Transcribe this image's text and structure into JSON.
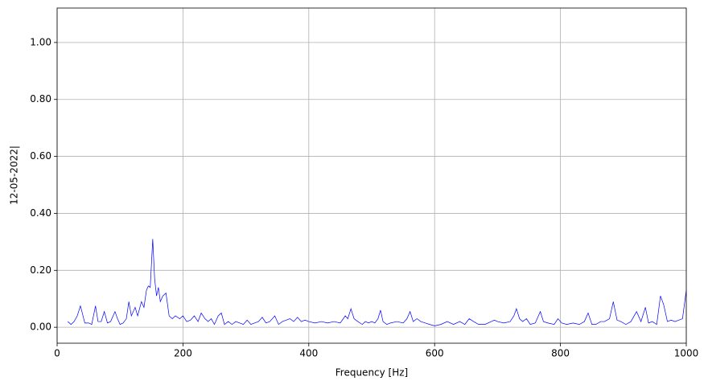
{
  "chart_data": {
    "type": "line",
    "xlabel": "Frequency [Hz]",
    "ylabel": "12-05-2022|",
    "x": [
      17,
      22,
      27,
      32,
      37,
      40,
      44,
      50,
      55,
      61,
      65,
      70,
      75,
      80,
      85,
      92,
      96,
      100,
      105,
      110,
      114,
      118,
      124,
      128,
      134,
      138,
      142,
      145,
      148,
      152,
      155,
      158,
      161,
      164,
      168,
      173,
      178,
      183,
      188,
      195,
      200,
      206,
      212,
      218,
      224,
      229,
      235,
      240,
      245,
      250,
      256,
      261,
      266,
      272,
      278,
      284,
      290,
      296,
      302,
      308,
      314,
      320,
      326,
      332,
      338,
      346,
      352,
      358,
      364,
      370,
      376,
      382,
      388,
      394,
      400,
      410,
      420,
      430,
      440,
      450,
      458,
      462,
      467,
      472,
      478,
      485,
      490,
      495,
      500,
      505,
      510,
      514,
      518,
      524,
      530,
      540,
      550,
      556,
      561,
      566,
      572,
      578,
      585,
      592,
      600,
      610,
      620,
      630,
      640,
      648,
      655,
      662,
      670,
      680,
      690,
      695,
      700,
      710,
      720,
      726,
      730,
      735,
      740,
      746,
      752,
      760,
      768,
      773,
      780,
      790,
      796,
      802,
      810,
      820,
      830,
      838,
      844,
      850,
      856,
      864,
      870,
      878,
      884,
      890,
      896,
      904,
      912,
      921,
      928,
      935,
      940,
      946,
      953,
      959,
      964,
      970,
      976,
      982,
      988,
      994,
      1000
    ],
    "series": [
      {
        "color": "#0000ff",
        "values": [
          0.02,
          0.01,
          0.02,
          0.04,
          0.075,
          0.05,
          0.015,
          0.015,
          0.01,
          0.075,
          0.02,
          0.02,
          0.055,
          0.015,
          0.02,
          0.055,
          0.03,
          0.01,
          0.015,
          0.03,
          0.09,
          0.04,
          0.07,
          0.04,
          0.09,
          0.07,
          0.13,
          0.145,
          0.14,
          0.31,
          0.17,
          0.11,
          0.14,
          0.09,
          0.11,
          0.12,
          0.04,
          0.03,
          0.04,
          0.03,
          0.04,
          0.02,
          0.025,
          0.04,
          0.02,
          0.05,
          0.03,
          0.02,
          0.03,
          0.01,
          0.04,
          0.05,
          0.01,
          0.02,
          0.01,
          0.02,
          0.015,
          0.01,
          0.025,
          0.01,
          0.015,
          0.02,
          0.035,
          0.015,
          0.02,
          0.04,
          0.01,
          0.02,
          0.025,
          0.03,
          0.02,
          0.035,
          0.02,
          0.025,
          0.02,
          0.015,
          0.02,
          0.015,
          0.02,
          0.015,
          0.04,
          0.03,
          0.065,
          0.03,
          0.02,
          0.01,
          0.02,
          0.015,
          0.02,
          0.015,
          0.03,
          0.06,
          0.02,
          0.01,
          0.015,
          0.02,
          0.015,
          0.03,
          0.055,
          0.02,
          0.03,
          0.02,
          0.015,
          0.01,
          0.005,
          0.01,
          0.02,
          0.01,
          0.02,
          0.01,
          0.03,
          0.02,
          0.01,
          0.01,
          0.02,
          0.025,
          0.02,
          0.015,
          0.02,
          0.04,
          0.065,
          0.03,
          0.02,
          0.03,
          0.01,
          0.015,
          0.055,
          0.02,
          0.015,
          0.01,
          0.03,
          0.015,
          0.01,
          0.015,
          0.01,
          0.02,
          0.05,
          0.01,
          0.01,
          0.02,
          0.02,
          0.03,
          0.09,
          0.025,
          0.02,
          0.01,
          0.02,
          0.055,
          0.02,
          0.07,
          0.015,
          0.02,
          0.01,
          0.11,
          0.08,
          0.02,
          0.025,
          0.02,
          0.025,
          0.03,
          0.13
        ]
      }
    ],
    "xlim": [
      0,
      1000
    ],
    "ylim": [
      -0.056,
      1.121
    ],
    "xticks": [
      0,
      200,
      400,
      600,
      800,
      1000
    ],
    "yticks": [
      {
        "value": 0,
        "label": "0.00"
      },
      {
        "value": 0.2,
        "label": "0.20"
      },
      {
        "value": 0.4,
        "label": "0.40"
      },
      {
        "value": 0.6,
        "label": "0.60"
      },
      {
        "value": 0.8,
        "label": "0.80"
      },
      {
        "value": 1.0,
        "label": "1.00"
      }
    ],
    "grid": true
  }
}
